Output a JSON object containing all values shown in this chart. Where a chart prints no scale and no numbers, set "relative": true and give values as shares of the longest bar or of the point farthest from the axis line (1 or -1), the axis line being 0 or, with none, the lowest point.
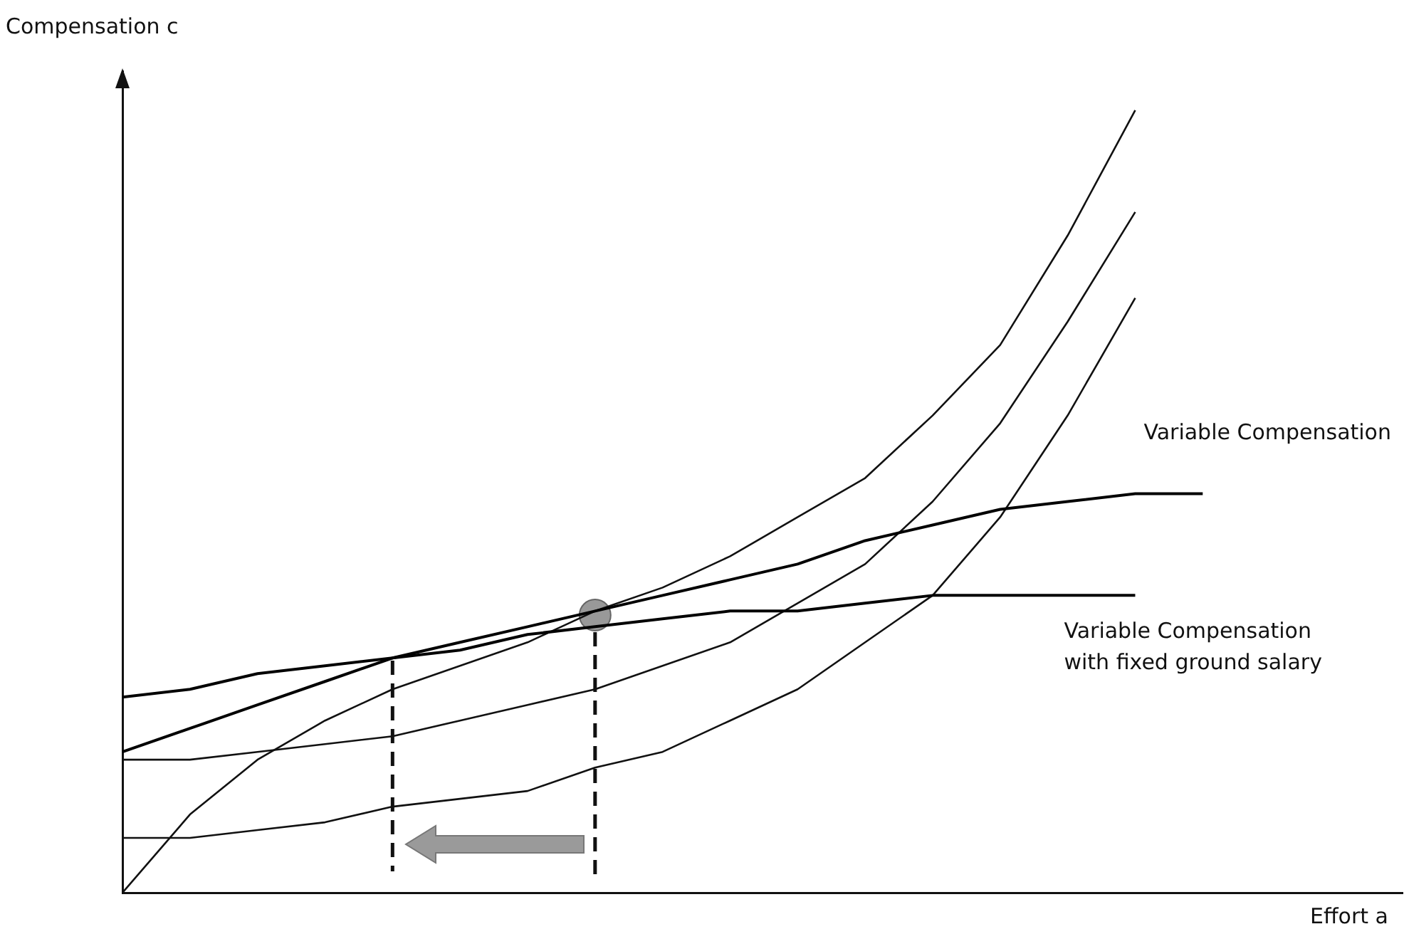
{
  "chart_data": {
    "type": "line",
    "relative": true,
    "xlabel": "Effort a",
    "ylabel": "Compensation c",
    "grid": false,
    "marker": "none",
    "categories": [
      null,
      null,
      null,
      null,
      null,
      null,
      null,
      null,
      null,
      null,
      null,
      null,
      null,
      null,
      null,
      null,
      null
    ],
    "series": [
      {
        "name": "Variable Compensation",
        "color": "#000000",
        "values": [
          0.18,
          0.21,
          0.24,
          0.27,
          0.3,
          0.32,
          0.34,
          0.36,
          0.38,
          0.4,
          0.42,
          0.45,
          0.47,
          0.49,
          0.5,
          0.51,
          0.51
        ]
      },
      {
        "name": "Variable Compensation with fixed ground salary",
        "color": "#000000",
        "values": [
          0.25,
          0.26,
          0.28,
          0.29,
          0.3,
          0.31,
          0.33,
          0.34,
          0.35,
          0.36,
          0.36,
          0.37,
          0.38,
          0.38,
          0.38,
          0.38,
          null
        ]
      },
      {
        "color": "#111111",
        "values": [
          0,
          0.1,
          0.17,
          0.22,
          0.26,
          0.29,
          0.32,
          0.36,
          0.39,
          0.43,
          0.48,
          0.53,
          0.61,
          0.7,
          0.84,
          1,
          null
        ]
      },
      {
        "color": "#111111",
        "values": [
          0.17,
          0.17,
          0.18,
          0.19,
          0.2,
          0.22,
          0.24,
          0.26,
          0.29,
          0.32,
          0.37,
          0.42,
          0.5,
          0.6,
          0.73,
          0.87,
          null
        ]
      },
      {
        "color": "#111111",
        "values": [
          0.07,
          0.07,
          0.08,
          0.09,
          0.11,
          0.12,
          0.13,
          0.16,
          0.18,
          0.22,
          0.26,
          0.32,
          0.38,
          0.48,
          0.61,
          0.76,
          null
        ]
      }
    ]
  }
}
